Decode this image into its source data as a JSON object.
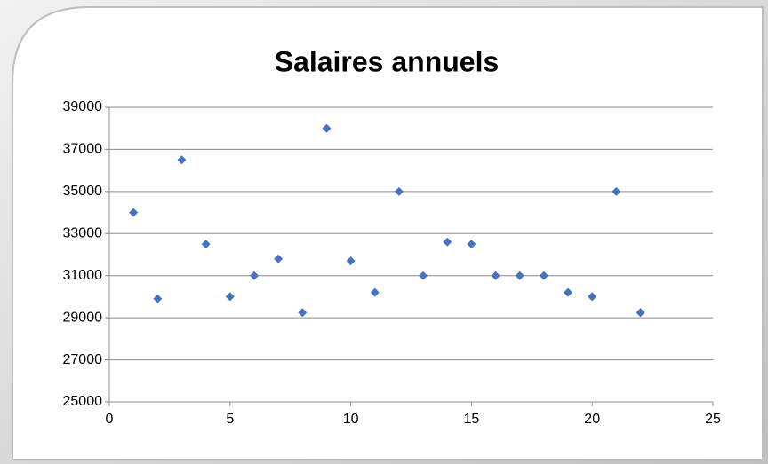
{
  "chart_data": {
    "type": "scatter",
    "title": "Salaires annuels",
    "x": [
      1,
      2,
      3,
      4,
      5,
      6,
      7,
      8,
      9,
      10,
      11,
      12,
      13,
      14,
      15,
      16,
      17,
      18,
      19,
      20,
      21,
      22
    ],
    "values": [
      34000,
      29900,
      36500,
      32500,
      30000,
      31000,
      31800,
      29250,
      38000,
      31700,
      30200,
      35000,
      31000,
      32600,
      32500,
      31000,
      31000,
      31000,
      30200,
      30000,
      35000,
      29250
    ],
    "color": "#4472c4",
    "xlim": [
      0,
      25
    ],
    "xticks": [
      0,
      5,
      10,
      15,
      20,
      25
    ],
    "ylim": [
      25000,
      39000
    ],
    "yticks": [
      25000,
      27000,
      29000,
      31000,
      33000,
      35000,
      37000,
      39000
    ],
    "grid": true
  }
}
